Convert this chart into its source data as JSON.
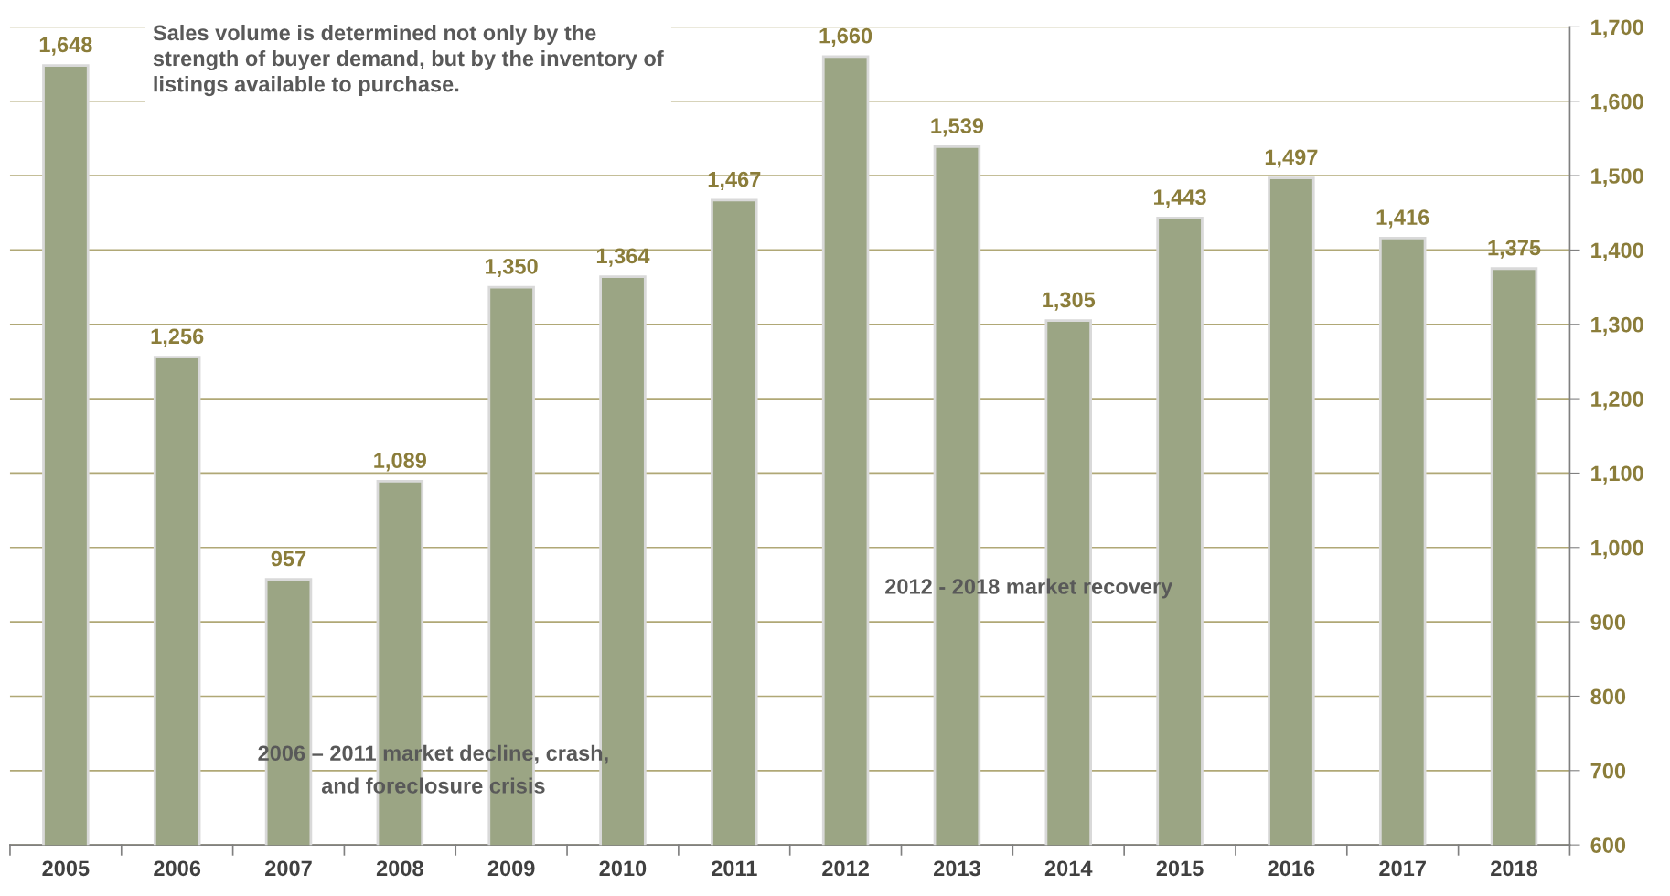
{
  "chart_data": {
    "type": "bar",
    "categories": [
      "2005",
      "2006",
      "2007",
      "2008",
      "2009",
      "2010",
      "2011",
      "2012",
      "2013",
      "2014",
      "2015",
      "2016",
      "2017",
      "2018"
    ],
    "values": [
      1648,
      1256,
      957,
      1089,
      1350,
      1364,
      1467,
      1660,
      1539,
      1305,
      1443,
      1497,
      1416,
      1375
    ],
    "color": "#9ba584",
    "value_labels": [
      "1,648",
      "1,256",
      "957",
      "1,089",
      "1,350",
      "1,364",
      "1,467",
      "1,660",
      "1,539",
      "1,305",
      "1,443",
      "1,497",
      "1,416",
      "1,375"
    ],
    "ylim": [
      600,
      1700
    ],
    "yticks": [
      600,
      700,
      800,
      900,
      {
        "value": 1000,
        "label": "1,000"
      },
      {
        "value": 1100,
        "label": "1,100"
      },
      {
        "value": 1200,
        "label": "1,200"
      },
      {
        "value": 1300,
        "label": "1,300"
      },
      {
        "value": 1400,
        "label": "1,400"
      },
      {
        "value": 1500,
        "label": "1,500"
      },
      {
        "value": 1600,
        "label": "1,600"
      },
      {
        "value": 1700,
        "label": "1,700"
      }
    ],
    "grid": "y",
    "annotations": [
      "Sales volume is determined not only by the\nstrength of buyer demand, but by the inventory of\nlistings available to purchase.",
      "2006 – 2011 market decline, crash,\nand foreclosure crisis",
      "2012 - 2018 market recovery"
    ]
  }
}
